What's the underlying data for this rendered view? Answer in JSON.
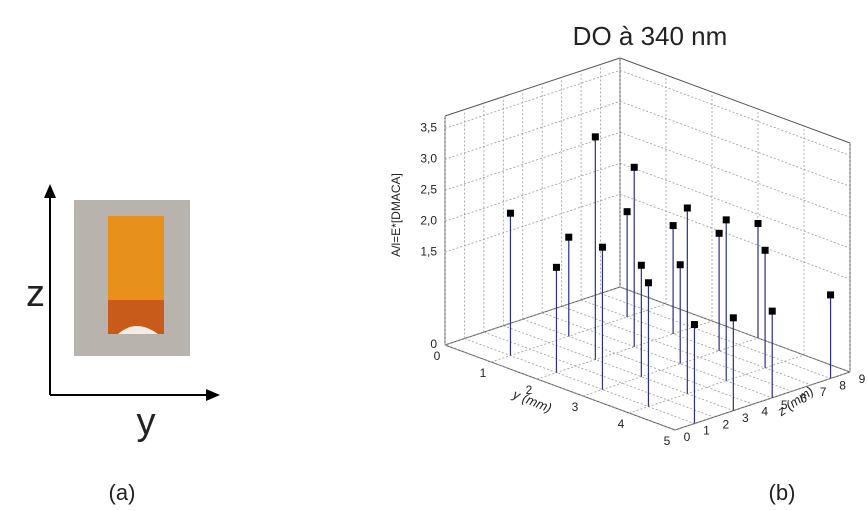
{
  "panel_a": {
    "z_label": "z",
    "y_label": "y",
    "caption": "(a)"
  },
  "chart_data": {
    "type": "scatter3d",
    "title": "DO à 340 nm",
    "caption": "(b)",
    "ylabel": "A/l=E*[DMACA]",
    "xlabel": "y (mm)",
    "zlabel": "z (mm)",
    "x": [
      1,
      1,
      1,
      2,
      2,
      2,
      2,
      3,
      3,
      3,
      3,
      3,
      4,
      4,
      4,
      4,
      5,
      5,
      5,
      5
    ],
    "z": [
      1,
      4,
      7,
      1,
      3,
      5,
      7,
      1,
      3,
      5,
      7,
      9,
      1,
      3,
      5,
      7,
      1,
      3,
      5,
      8
    ],
    "values": [
      2.3,
      1.6,
      1.7,
      1.7,
      3.6,
      2.9,
      1.75,
      2.3,
      1.8,
      1.6,
      1.9,
      1.85,
      2.0,
      3.0,
      2.6,
      1.9,
      1.6,
      1.5,
      1.4,
      1.35
    ],
    "color": "#2b2f8a",
    "marker_color": "#000000",
    "xlim": [
      0,
      5
    ],
    "zlim": [
      0,
      9
    ],
    "ylim": [
      0,
      3.7
    ],
    "xticks": [
      0,
      1,
      2,
      3,
      4,
      5
    ],
    "zticks": [
      0,
      1,
      2,
      3,
      4,
      5,
      6,
      7,
      8,
      9
    ],
    "yticks": [
      0,
      {
        "value": 1.5,
        "label": "1,5"
      },
      {
        "value": 2,
        "label": "2,0"
      },
      {
        "value": 2.5,
        "label": "2,5"
      },
      {
        "value": 3,
        "label": "3,0"
      },
      {
        "value": 3.5,
        "label": "3,5"
      }
    ],
    "grid": true
  }
}
